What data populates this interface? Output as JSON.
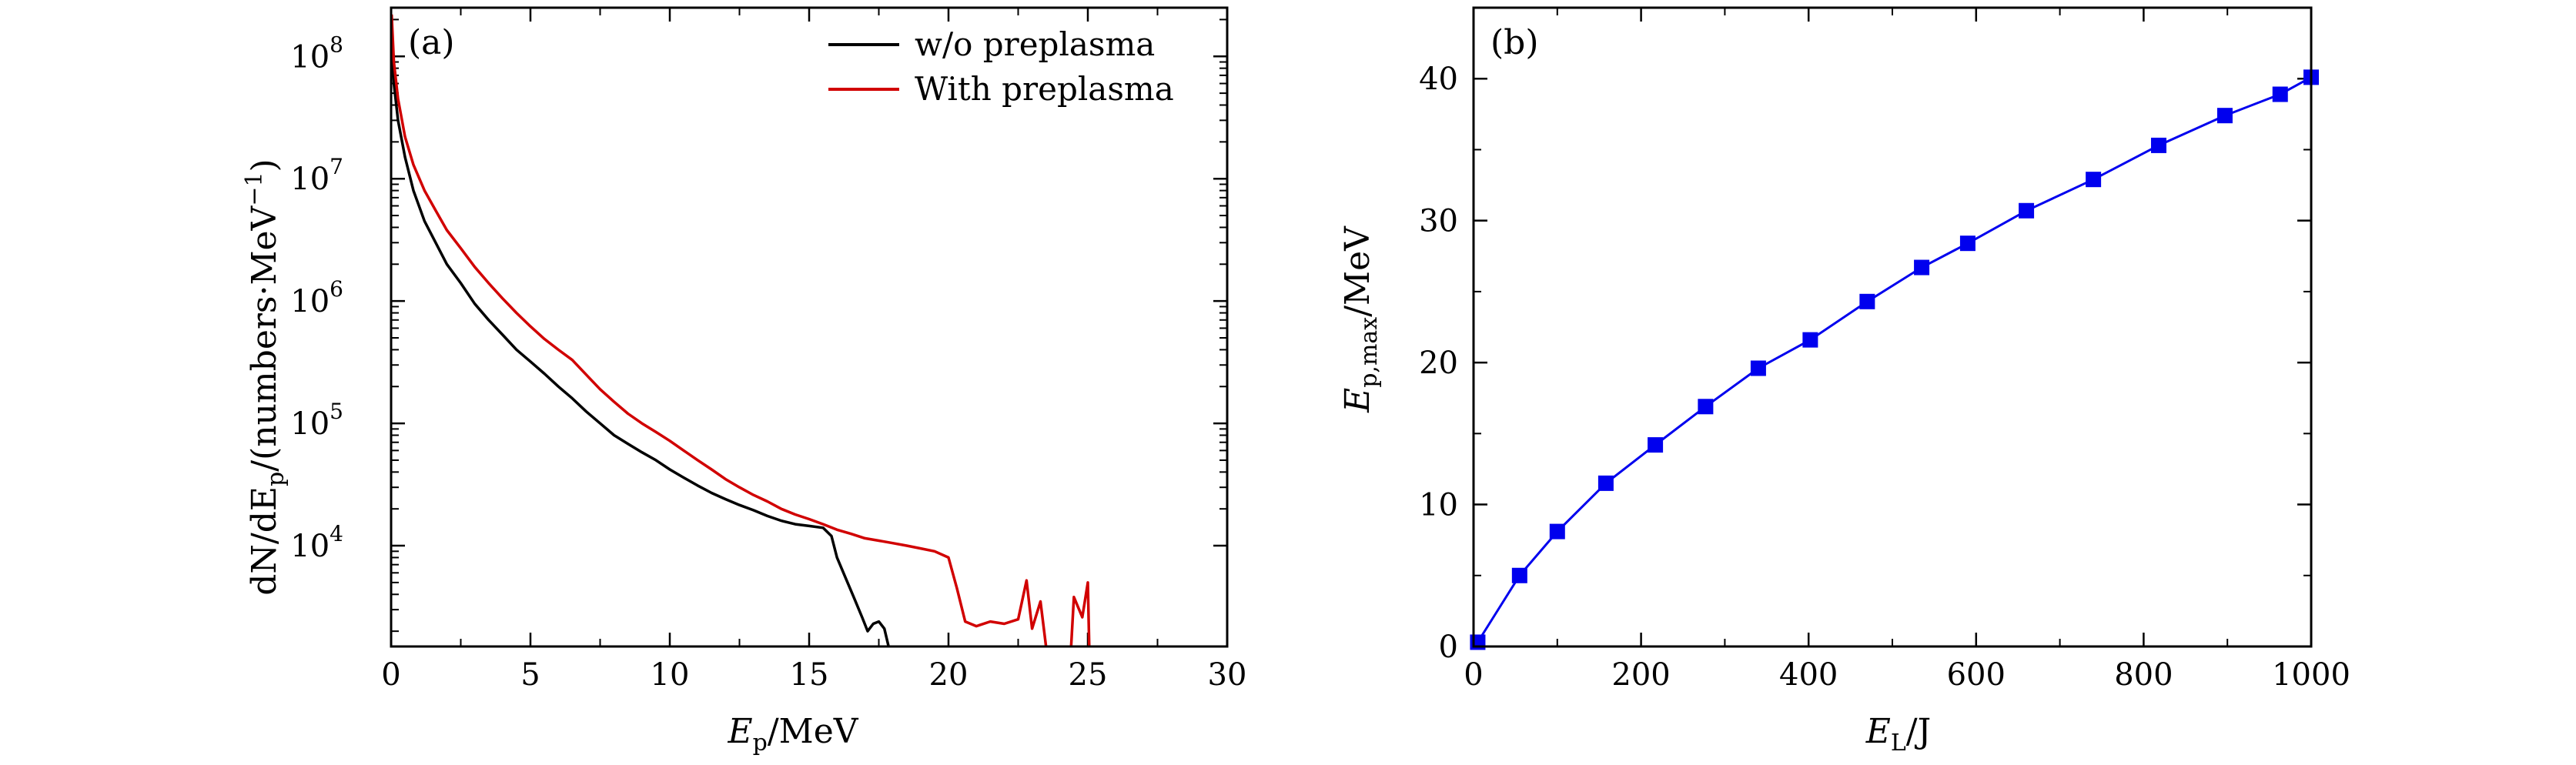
{
  "chart_data": [
    {
      "type": "line",
      "panel_label": "(a)",
      "xscale": "linear",
      "yscale": "log",
      "xlim": [
        0,
        30
      ],
      "ylim": [
        1500,
        250000000
      ],
      "xticks": [
        0,
        5,
        10,
        15,
        20,
        25,
        30
      ],
      "xtick_labels": [
        "0",
        "5",
        "10",
        "15",
        "20",
        "25",
        "30"
      ],
      "yticks": [
        10000,
        100000,
        1000000,
        10000000,
        100000000
      ],
      "ytick_labels": [
        {
          "base": "10",
          "exp": "4"
        },
        {
          "base": "10",
          "exp": "5"
        },
        {
          "base": "10",
          "exp": "6"
        },
        {
          "base": "10",
          "exp": "7"
        },
        {
          "base": "10",
          "exp": "8"
        }
      ],
      "xlabel": {
        "main": "E",
        "sub": "p",
        "rest": "/MeV"
      },
      "ylabel": {
        "a": "dN/dE",
        "sub": "p",
        "b": "/(numbers·MeV",
        "sup": "−1",
        "c": ")"
      },
      "legend_position": "top-right",
      "series": [
        {
          "name": "w/o preplasma",
          "color": "#000000",
          "points": [
            [
              0.02,
              180000000
            ],
            [
              0.1,
              60000000
            ],
            [
              0.25,
              30000000
            ],
            [
              0.5,
              15000000
            ],
            [
              0.8,
              8000000
            ],
            [
              1.2,
              4500000
            ],
            [
              1.6,
              3000000
            ],
            [
              2.0,
              2000000
            ],
            [
              2.5,
              1400000
            ],
            [
              3.0,
              950000
            ],
            [
              3.5,
              700000
            ],
            [
              4.0,
              530000
            ],
            [
              4.5,
              400000
            ],
            [
              5.0,
              320000
            ],
            [
              5.5,
              255000
            ],
            [
              6.0,
              200000
            ],
            [
              6.5,
              160000
            ],
            [
              7.0,
              125000
            ],
            [
              7.5,
              100000
            ],
            [
              8.0,
              80000
            ],
            [
              8.5,
              68000
            ],
            [
              9.0,
              58000
            ],
            [
              9.5,
              50000
            ],
            [
              10.0,
              42000
            ],
            [
              10.5,
              36000
            ],
            [
              11.0,
              31000
            ],
            [
              11.5,
              27000
            ],
            [
              12.0,
              24000
            ],
            [
              12.5,
              21500
            ],
            [
              13.0,
              19500
            ],
            [
              13.5,
              17500
            ],
            [
              14.0,
              16000
            ],
            [
              14.5,
              15000
            ],
            [
              15.0,
              14500
            ],
            [
              15.5,
              14000
            ],
            [
              15.8,
              12000
            ],
            [
              16.0,
              8000
            ],
            [
              16.3,
              5500
            ],
            [
              16.6,
              3800
            ],
            [
              16.9,
              2600
            ],
            [
              17.1,
              2000
            ],
            [
              17.3,
              2300
            ],
            [
              17.5,
              2400
            ],
            [
              17.7,
              2100
            ],
            [
              17.85,
              1500
            ]
          ]
        },
        {
          "name": "With preplasma",
          "color": "#d10000",
          "points": [
            [
              0.02,
              220000000
            ],
            [
              0.1,
              90000000
            ],
            [
              0.25,
              45000000
            ],
            [
              0.5,
              22000000
            ],
            [
              0.8,
              13000000
            ],
            [
              1.2,
              8000000
            ],
            [
              1.6,
              5500000
            ],
            [
              2.0,
              3800000
            ],
            [
              2.5,
              2700000
            ],
            [
              3.0,
              1900000
            ],
            [
              3.5,
              1400000
            ],
            [
              4.0,
              1050000
            ],
            [
              4.5,
              800000
            ],
            [
              5.0,
              620000
            ],
            [
              5.5,
              490000
            ],
            [
              6.0,
              400000
            ],
            [
              6.5,
              330000
            ],
            [
              7.0,
              250000
            ],
            [
              7.5,
              190000
            ],
            [
              8.0,
              150000
            ],
            [
              8.5,
              120000
            ],
            [
              9.0,
              100000
            ],
            [
              9.5,
              85000
            ],
            [
              10.0,
              72000
            ],
            [
              10.5,
              60000
            ],
            [
              11.0,
              50000
            ],
            [
              11.5,
              42000
            ],
            [
              12.0,
              35000
            ],
            [
              12.5,
              30000
            ],
            [
              13.0,
              26000
            ],
            [
              13.5,
              23000
            ],
            [
              14.0,
              20000
            ],
            [
              14.5,
              18000
            ],
            [
              15.0,
              16500
            ],
            [
              15.5,
              15000
            ],
            [
              16.0,
              13500
            ],
            [
              16.5,
              12500
            ],
            [
              17.0,
              11500
            ],
            [
              17.5,
              11000
            ],
            [
              18.0,
              10500
            ],
            [
              18.5,
              10000
            ],
            [
              19.0,
              9500
            ],
            [
              19.5,
              9000
            ],
            [
              20.0,
              8000
            ],
            [
              20.3,
              4500
            ],
            [
              20.6,
              2400
            ],
            [
              21.0,
              2200
            ],
            [
              21.5,
              2400
            ],
            [
              22.0,
              2300
            ],
            [
              22.5,
              2500
            ],
            [
              22.8,
              5200
            ],
            [
              23.0,
              2100
            ],
            [
              23.3,
              3500
            ],
            [
              23.5,
              1500
            ]
          ],
          "extra_points": [
            [
              24.4,
              1500
            ],
            [
              24.5,
              3800
            ],
            [
              24.8,
              2600
            ],
            [
              25.0,
              5000
            ],
            [
              25.05,
              1500
            ]
          ]
        }
      ]
    },
    {
      "type": "line",
      "panel_label": "(b)",
      "xscale": "linear",
      "yscale": "linear",
      "xlim": [
        0,
        1000
      ],
      "ylim": [
        0,
        45
      ],
      "xticks": [
        0,
        200,
        400,
        600,
        800,
        1000
      ],
      "xtick_labels": [
        "0",
        "200",
        "400",
        "600",
        "800",
        "1000"
      ],
      "yticks": [
        0,
        10,
        20,
        30,
        40
      ],
      "ytick_labels": [
        "0",
        "10",
        "20",
        "30",
        "40"
      ],
      "xlabel": {
        "main": "E",
        "sub": "L",
        "rest": "/J"
      },
      "ylabel": {
        "main": "E",
        "sub": "p,max",
        "rest": "/MeV"
      },
      "series": [
        {
          "name": "",
          "color": "#0000ee",
          "marker": "square",
          "x": [
            5,
            55,
            100,
            158,
            217,
            277,
            340,
            402,
            470,
            535,
            590,
            660,
            740,
            818,
            897,
            963,
            1000
          ],
          "y": [
            0.3,
            5.0,
            8.1,
            11.5,
            14.2,
            16.9,
            19.6,
            21.6,
            24.3,
            26.7,
            28.4,
            30.7,
            32.9,
            35.3,
            37.4,
            38.9,
            40.1
          ]
        }
      ]
    }
  ]
}
